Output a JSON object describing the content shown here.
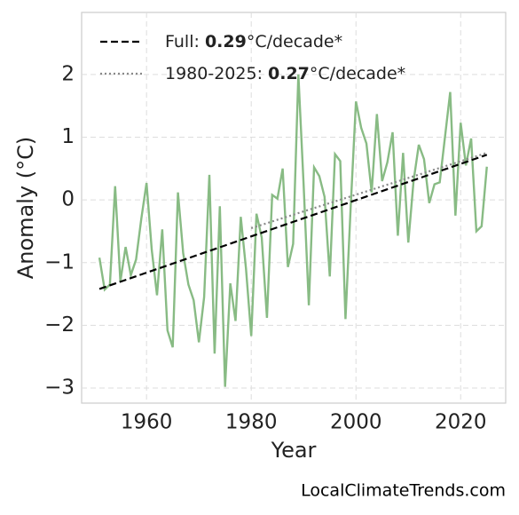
{
  "chart_data": {
    "type": "line",
    "x_label": "Year",
    "y_label": "Anomaly (°C)",
    "watermark": "LocalClimateTrends.com",
    "xlim": [
      1947.6,
      2028.6
    ],
    "ylim": [
      -3.24,
      2.99
    ],
    "xticks": [
      1960,
      1980,
      2000,
      2020
    ],
    "yticks": [
      {
        "value": -3,
        "label": "−3"
      },
      {
        "value": -2,
        "label": "−2"
      },
      {
        "value": -1,
        "label": "−1"
      },
      0,
      1,
      2
    ],
    "grid": true,
    "series": [
      {
        "color": "#88bb84",
        "x": [
          1951,
          1952,
          1953,
          1954,
          1955,
          1956,
          1957,
          1958,
          1959,
          1960,
          1961,
          1962,
          1963,
          1964,
          1965,
          1966,
          1967,
          1968,
          1969,
          1970,
          1971,
          1972,
          1973,
          1974,
          1975,
          1976,
          1977,
          1978,
          1979,
          1980,
          1981,
          1982,
          1983,
          1984,
          1985,
          1986,
          1987,
          1988,
          1989,
          1990,
          1991,
          1992,
          1993,
          1994,
          1995,
          1996,
          1997,
          1998,
          1999,
          2000,
          2001,
          2002,
          2003,
          2004,
          2005,
          2006,
          2007,
          2008,
          2009,
          2010,
          2011,
          2012,
          2013,
          2014,
          2015,
          2016,
          2017,
          2018,
          2019,
          2020,
          2021,
          2022,
          2023,
          2024,
          2025
        ],
        "values": [
          -0.92,
          -1.43,
          -1.35,
          0.22,
          -1.3,
          -0.75,
          -1.2,
          -0.95,
          -0.3,
          0.27,
          -0.8,
          -1.52,
          -0.47,
          -2.08,
          -2.35,
          0.12,
          -0.85,
          -1.35,
          -1.6,
          -2.27,
          -1.55,
          0.4,
          -2.45,
          -0.1,
          -2.98,
          -1.33,
          -1.93,
          -0.27,
          -1.1,
          -2.17,
          -0.22,
          -0.6,
          -1.88,
          0.08,
          0.02,
          0.5,
          -1.07,
          -0.7,
          2.0,
          0.25,
          -1.68,
          0.52,
          0.38,
          0.05,
          -1.22,
          0.73,
          0.62,
          -1.9,
          -0.1,
          1.57,
          1.15,
          0.9,
          0.12,
          1.37,
          0.3,
          0.6,
          1.08,
          -0.57,
          0.75,
          -0.68,
          0.3,
          0.88,
          0.65,
          -0.05,
          0.25,
          0.28,
          1.0,
          1.72,
          -0.25,
          1.23,
          0.55,
          0.98,
          -0.5,
          -0.42,
          0.53
        ]
      },
      {
        "color": "#000000",
        "style": "dashed",
        "label_parts": [
          "Full: ",
          "0.29",
          "°C/decade*"
        ],
        "x": [
          1951,
          2025
        ],
        "values": [
          -1.42,
          0.72
        ]
      },
      {
        "color": "#888888",
        "style": "dotted",
        "label_parts": [
          "1980-2025: ",
          "0.27",
          "°C/decade*"
        ],
        "x": [
          1980,
          2025
        ],
        "values": [
          -0.45,
          0.75
        ]
      }
    ]
  }
}
